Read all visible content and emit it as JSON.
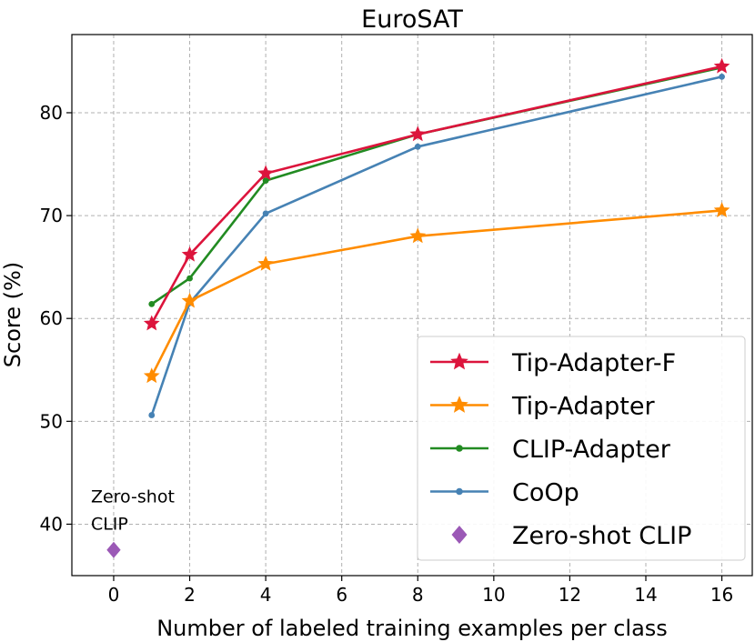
{
  "chart_data": {
    "type": "line",
    "title": "EuroSAT",
    "xlabel": "Number of labeled training examples per class",
    "ylabel": "Score (%)",
    "xlim": [
      -1.1,
      16.8
    ],
    "ylim": [
      35.0,
      87.6
    ],
    "xticks": [
      0,
      2,
      4,
      6,
      8,
      10,
      12,
      14,
      16
    ],
    "yticks": [
      40,
      50,
      60,
      70,
      80
    ],
    "grid": true,
    "legend_position": "lower-right",
    "series": [
      {
        "name": "Tip-Adapter-F",
        "color": "#dc143c",
        "marker": "star",
        "x": [
          1,
          2,
          4,
          8,
          16
        ],
        "values": [
          59.5,
          66.2,
          74.1,
          77.9,
          84.5
        ]
      },
      {
        "name": "Tip-Adapter",
        "color": "#ff8c00",
        "marker": "star",
        "x": [
          1,
          2,
          4,
          8,
          16
        ],
        "values": [
          54.4,
          61.7,
          65.3,
          68.0,
          70.5
        ]
      },
      {
        "name": "CLIP-Adapter",
        "color": "#228b22",
        "marker": "dot",
        "x": [
          1,
          2,
          4,
          8,
          16
        ],
        "values": [
          61.4,
          63.9,
          73.4,
          77.9,
          84.4
        ]
      },
      {
        "name": "CoOp",
        "color": "#4682b4",
        "marker": "dot",
        "x": [
          1,
          2,
          4,
          8,
          16
        ],
        "values": [
          50.6,
          61.5,
          70.2,
          76.7,
          83.5
        ]
      },
      {
        "name": "Zero-shot CLIP",
        "color": "#9b59b6",
        "marker": "diamond",
        "x": [
          0
        ],
        "values": [
          37.5
        ]
      }
    ],
    "annotations": [
      {
        "lines": [
          "Zero-shot",
          "CLIP"
        ],
        "x": 0,
        "y": 37.5
      }
    ]
  }
}
